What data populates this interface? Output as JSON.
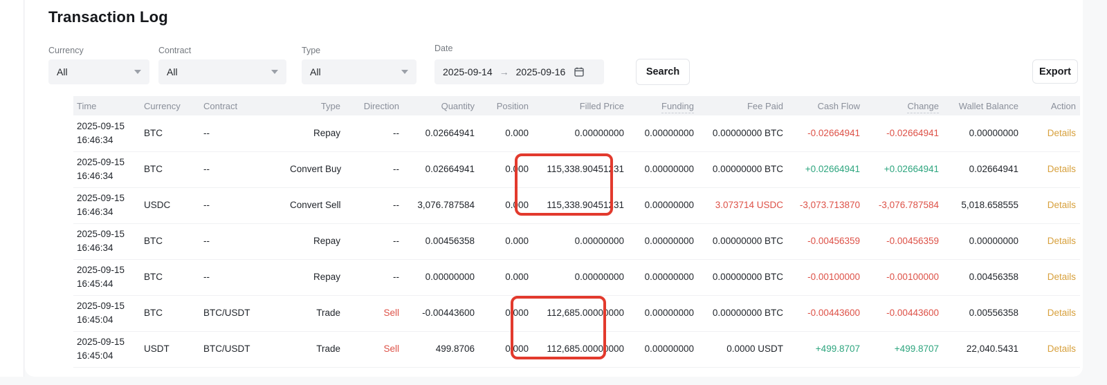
{
  "page": {
    "title": "Transaction Log"
  },
  "filters": {
    "currency": {
      "label": "Currency",
      "value": "All"
    },
    "contract": {
      "label": "Contract",
      "value": "All"
    },
    "type": {
      "label": "Type",
      "value": "All"
    },
    "date": {
      "label": "Date",
      "start": "2025-09-14",
      "separator": "→",
      "end": "2025-09-16"
    },
    "search_label": "Search",
    "export_label": "Export"
  },
  "table": {
    "columns": [
      {
        "label": "Time"
      },
      {
        "label": "Currency"
      },
      {
        "label": "Contract"
      },
      {
        "label": "Type"
      },
      {
        "label": "Direction"
      },
      {
        "label": "Quantity"
      },
      {
        "label": "Position"
      },
      {
        "label": "Filled Price"
      },
      {
        "label": "Funding",
        "hint": true
      },
      {
        "label": "Fee Paid"
      },
      {
        "label": "Cash Flow"
      },
      {
        "label": "Change",
        "hint": true
      },
      {
        "label": "Wallet Balance"
      },
      {
        "label": "Action"
      }
    ],
    "rows": [
      {
        "date": "2025-09-15",
        "time": "16:46:34",
        "currency": "BTC",
        "contract": "--",
        "type": "Repay",
        "direction": "--",
        "direction_cls": "",
        "quantity": "0.02664941",
        "position": "0.000",
        "filled_price": "0.00000000",
        "funding": "0.00000000",
        "fee_paid": "0.00000000 BTC",
        "fee_paid_cls": "",
        "cash_flow": "-0.02664941",
        "cash_flow_cls": "neg",
        "change": "-0.02664941",
        "change_cls": "neg",
        "wallet_balance": "0.00000000",
        "action": "Details"
      },
      {
        "date": "2025-09-15",
        "time": "16:46:34",
        "currency": "BTC",
        "contract": "--",
        "type": "Convert Buy",
        "direction": "--",
        "direction_cls": "",
        "quantity": "0.02664941",
        "position": "0.000",
        "filled_price": "115,338.90451231",
        "funding": "0.00000000",
        "fee_paid": "0.00000000 BTC",
        "fee_paid_cls": "",
        "cash_flow": "+0.02664941",
        "cash_flow_cls": "pos",
        "change": "+0.02664941",
        "change_cls": "pos",
        "wallet_balance": "0.02664941",
        "action": "Details"
      },
      {
        "date": "2025-09-15",
        "time": "16:46:34",
        "currency": "USDC",
        "contract": "--",
        "type": "Convert Sell",
        "direction": "--",
        "direction_cls": "",
        "quantity": "3,076.787584",
        "position": "0.000",
        "filled_price": "115,338.90451231",
        "funding": "0.00000000",
        "fee_paid": "3.073714 USDC",
        "fee_paid_cls": "neg",
        "cash_flow": "-3,073.713870",
        "cash_flow_cls": "neg",
        "change": "-3,076.787584",
        "change_cls": "neg",
        "wallet_balance": "5,018.658555",
        "action": "Details"
      },
      {
        "date": "2025-09-15",
        "time": "16:46:34",
        "currency": "BTC",
        "contract": "--",
        "type": "Repay",
        "direction": "--",
        "direction_cls": "",
        "quantity": "0.00456358",
        "position": "0.000",
        "filled_price": "0.00000000",
        "funding": "0.00000000",
        "fee_paid": "0.00000000 BTC",
        "fee_paid_cls": "",
        "cash_flow": "-0.00456359",
        "cash_flow_cls": "neg",
        "change": "-0.00456359",
        "change_cls": "neg",
        "wallet_balance": "0.00000000",
        "action": "Details"
      },
      {
        "date": "2025-09-15",
        "time": "16:45:44",
        "currency": "BTC",
        "contract": "--",
        "type": "Repay",
        "direction": "--",
        "direction_cls": "",
        "quantity": "0.00000000",
        "position": "0.000",
        "filled_price": "0.00000000",
        "funding": "0.00000000",
        "fee_paid": "0.00000000 BTC",
        "fee_paid_cls": "",
        "cash_flow": "-0.00100000",
        "cash_flow_cls": "neg",
        "change": "-0.00100000",
        "change_cls": "neg",
        "wallet_balance": "0.00456358",
        "action": "Details"
      },
      {
        "date": "2025-09-15",
        "time": "16:45:04",
        "currency": "BTC",
        "contract": "BTC/USDT",
        "type": "Trade",
        "direction": "Sell",
        "direction_cls": "neg",
        "quantity": "-0.00443600",
        "position": "0.000",
        "filled_price": "112,685.00000000",
        "funding": "0.00000000",
        "fee_paid": "0.00000000 BTC",
        "fee_paid_cls": "",
        "cash_flow": "-0.00443600",
        "cash_flow_cls": "neg",
        "change": "-0.00443600",
        "change_cls": "neg",
        "wallet_balance": "0.00556358",
        "action": "Details"
      },
      {
        "date": "2025-09-15",
        "time": "16:45:04",
        "currency": "USDT",
        "contract": "BTC/USDT",
        "type": "Trade",
        "direction": "Sell",
        "direction_cls": "neg",
        "quantity": "499.8706",
        "position": "0.000",
        "filled_price": "112,685.00000000",
        "funding": "0.00000000",
        "fee_paid": "0.0000 USDT",
        "fee_paid_cls": "",
        "cash_flow": "+499.8707",
        "cash_flow_cls": "pos",
        "change": "+499.8707",
        "change_cls": "pos",
        "wallet_balance": "22,040.5431",
        "action": "Details"
      }
    ]
  },
  "annotations": {
    "highlight_color": "#e23a2d",
    "boxes": [
      {
        "column": "Filled Price",
        "rows": [
          2,
          3
        ]
      },
      {
        "column": "Filled Price",
        "rows": [
          6,
          7
        ]
      }
    ]
  },
  "colors": {
    "negative": "#dd5147",
    "positive": "#2da57e",
    "details_link": "#d7a03c"
  }
}
